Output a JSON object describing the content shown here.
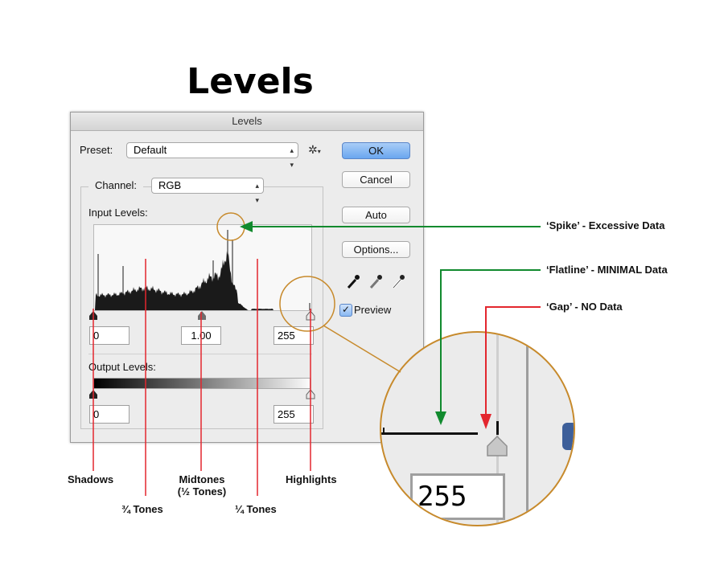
{
  "page_title": "Levels",
  "dialog": {
    "title": "Levels",
    "preset_label": "Preset:",
    "preset_value": "Default",
    "channel_label": "Channel:",
    "channel_value": "RGB",
    "input_levels_label": "Input Levels:",
    "input_shadow": "0",
    "input_midtone": "1.00",
    "input_highlight": "255",
    "output_levels_label": "Output Levels:",
    "output_shadow": "0",
    "output_highlight": "255",
    "buttons": {
      "ok": "OK",
      "cancel": "Cancel",
      "auto": "Auto",
      "options": "Options..."
    },
    "preview_label": "Preview",
    "preview_checked": true
  },
  "annotations": {
    "spike": "‘Spike’ - Excessive Data",
    "flatline": "‘Flatline’ - MINIMAL Data",
    "gap": "‘Gap’ - NO Data",
    "shadows": "Shadows",
    "three_quarter": "¾ Tones",
    "midtones_line1": "Midtones",
    "midtones_line2": "(½ Tones)",
    "quarter": "¼ Tones",
    "highlights": "Highlights"
  },
  "zoom": {
    "value": "255"
  },
  "colors": {
    "spike_arrow": "#118a2e",
    "flatline_arrow": "#118a2e",
    "gap_arrow": "#e3262e",
    "tone_lines": "#e3262e",
    "callout_circle": "#c78a2c",
    "ok_button": "#6aa6ef"
  },
  "icons": [
    "gear-icon",
    "black-eyedropper-icon",
    "gray-eyedropper-icon",
    "white-eyedropper-icon",
    "checkbox-icon",
    "up-down-arrows-icon"
  ]
}
